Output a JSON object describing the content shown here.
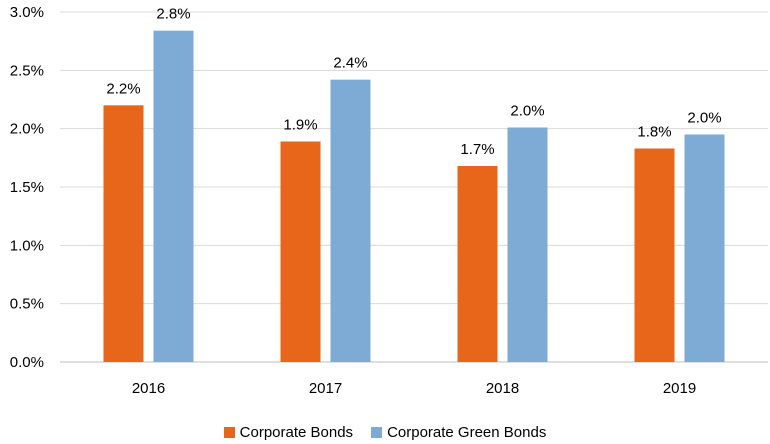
{
  "chart_data": {
    "type": "bar",
    "categories": [
      "2016",
      "2017",
      "2018",
      "2019"
    ],
    "series": [
      {
        "name": "Corporate Bonds",
        "color": "#E8661A",
        "values": [
          2.2,
          1.89,
          1.68,
          1.83
        ],
        "labels": [
          "2.2%",
          "1.9%",
          "1.7%",
          "1.8%"
        ]
      },
      {
        "name": "Corporate Green Bonds",
        "color": "#7EAAD6",
        "values": [
          2.84,
          2.42,
          2.01,
          1.95
        ],
        "labels": [
          "2.8%",
          "2.4%",
          "2.0%",
          "2.0%"
        ]
      }
    ],
    "ylim": [
      0,
      3.0
    ],
    "yticks": [
      0,
      0.5,
      1.0,
      1.5,
      2.0,
      2.5,
      3.0
    ],
    "ytick_labels": [
      "0.0%",
      "0.5%",
      "1.0%",
      "1.5%",
      "2.0%",
      "2.5%",
      "3.0%"
    ],
    "grid": true,
    "legend_position": "bottom"
  }
}
